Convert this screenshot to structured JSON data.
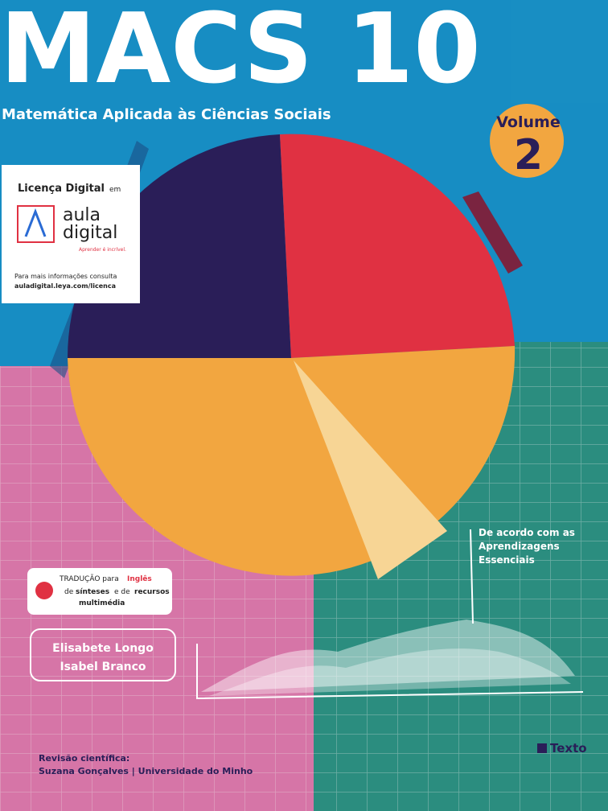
{
  "cover": {
    "title": "MACS 10",
    "subtitle": "Matemática Aplicada às Ciências Sociais",
    "volume": {
      "label": "Volume",
      "number": "2"
    },
    "license": {
      "heading": "Licença Digital",
      "heading_suffix": "em",
      "brand_line1": "aula",
      "brand_line2": "digital",
      "tagline": "Aprender é incrível.",
      "info": "Para mais informações consulta",
      "url": "auladigital.leya.com/licenca"
    },
    "translation": {
      "prefix": "TRADUÇÃO para",
      "language": "Inglês",
      "line2a": "de",
      "line2b": "sínteses",
      "line2c": "e de",
      "line2d": "recursos",
      "line3": "multimédia"
    },
    "annotation": [
      "De acordo com as",
      "Aprendizagens",
      "Essenciais"
    ],
    "authors": [
      "Elisabete Longo",
      "Isabel Branco"
    ],
    "review": {
      "label": "Revisão científica:",
      "reviewer": "Suzana Gonçalves | Universidade do Minho"
    },
    "publisher": "Texto"
  }
}
